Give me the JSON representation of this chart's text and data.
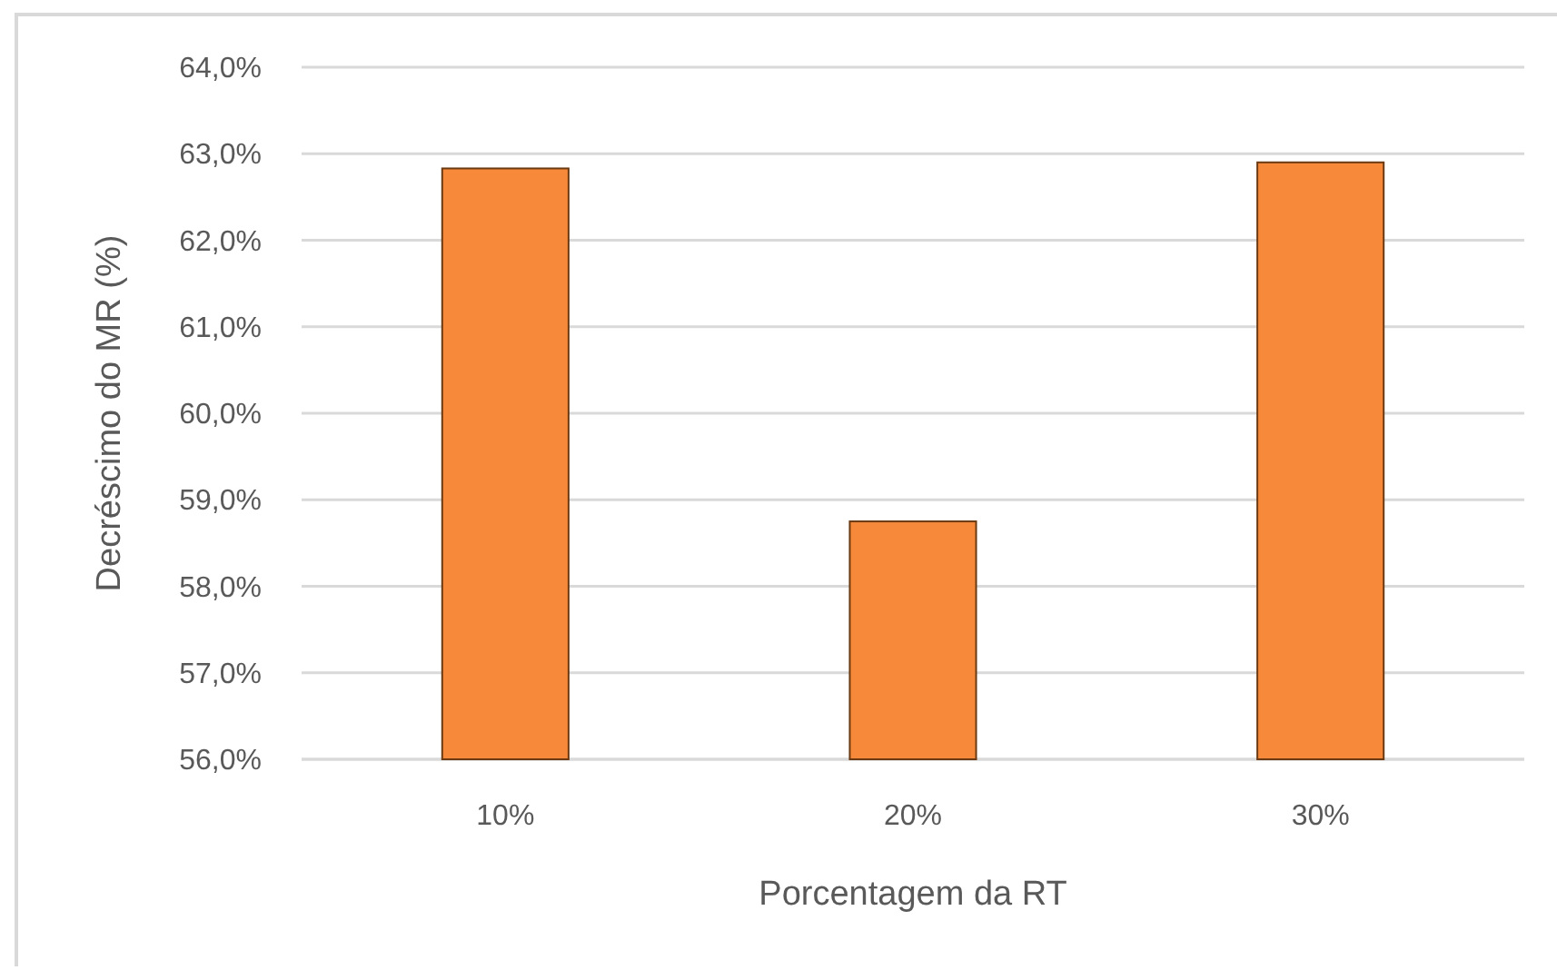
{
  "chart_data": {
    "type": "bar",
    "xlabel": "Porcentagem da RT",
    "ylabel": "Decréscimo do MR (%)",
    "categories": [
      "10%",
      "20%",
      "30%"
    ],
    "values": [
      62.83,
      58.75,
      62.9
    ],
    "color": "#f68a3a",
    "ylim": [
      56,
      64
    ],
    "yticks": [
      {
        "value": 56,
        "label": "56,0%"
      },
      {
        "value": 57,
        "label": "57,0%"
      },
      {
        "value": 58,
        "label": "58,0%"
      },
      {
        "value": 59,
        "label": "59,0%"
      },
      {
        "value": 60,
        "label": "60,0%"
      },
      {
        "value": 61,
        "label": "61,0%"
      },
      {
        "value": 62,
        "label": "62,0%"
      },
      {
        "value": 63,
        "label": "63,0%"
      },
      {
        "value": 64,
        "label": "64,0%"
      }
    ],
    "grid": "y"
  }
}
